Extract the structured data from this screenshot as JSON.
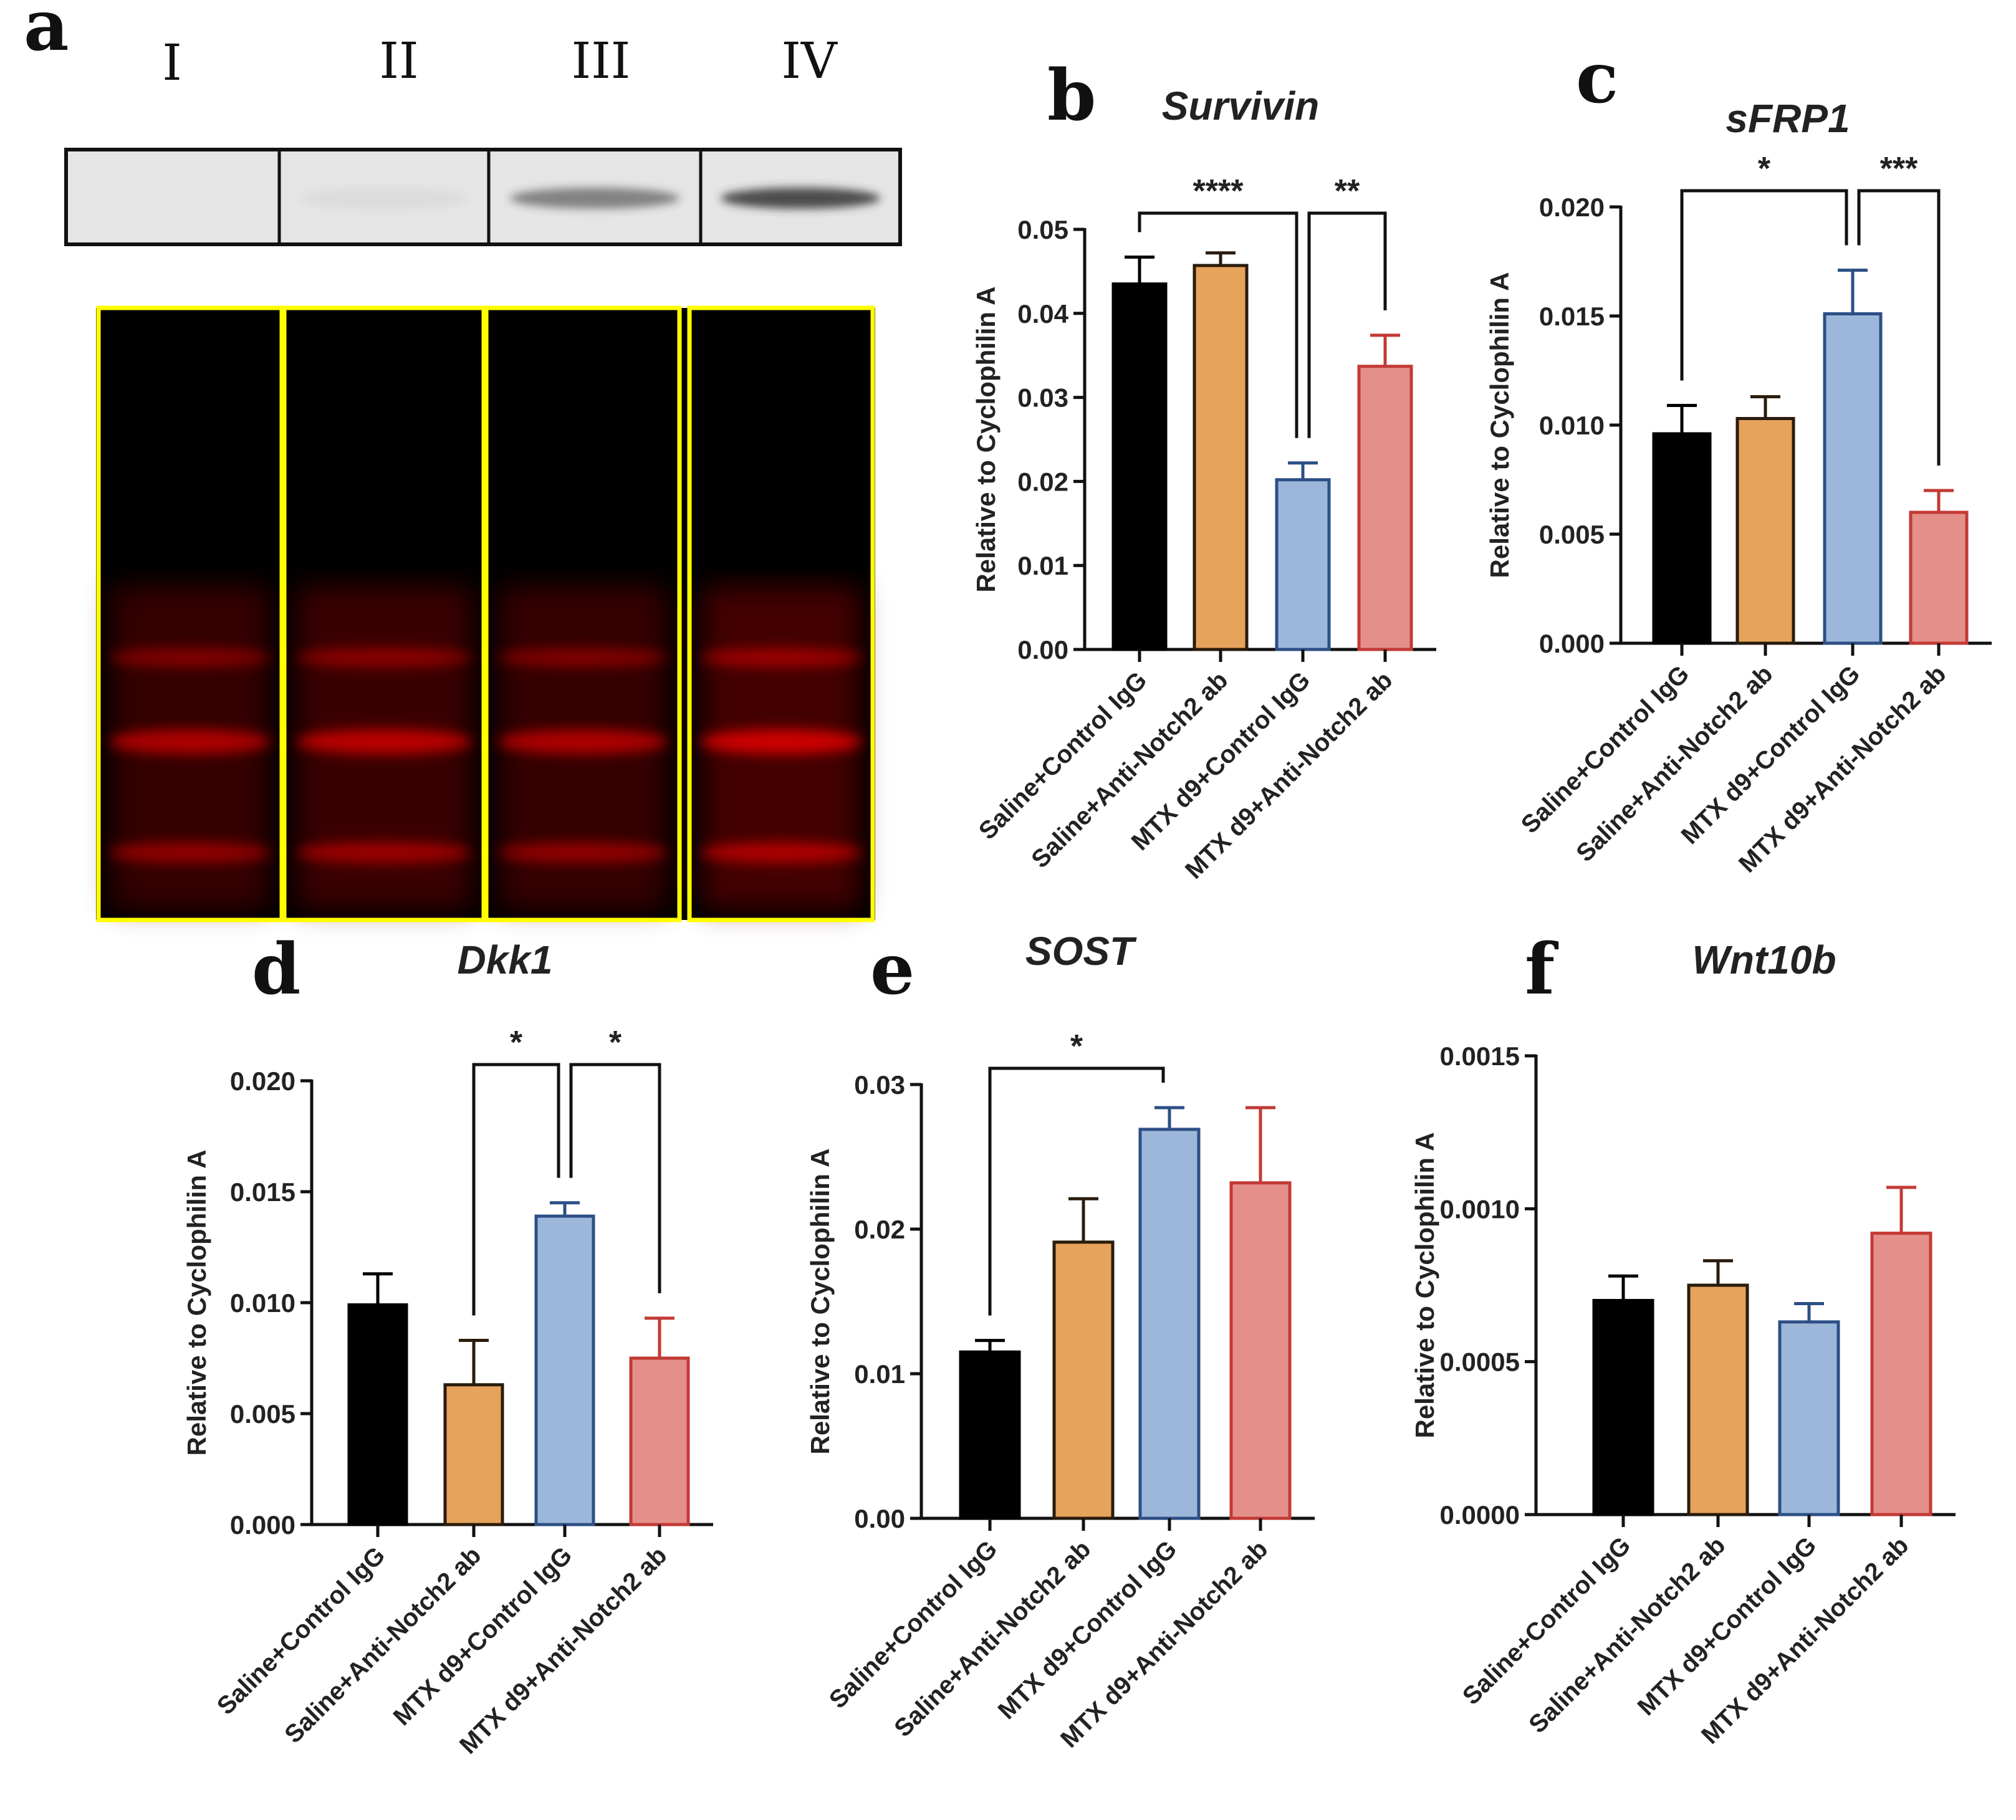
{
  "panel_a": {
    "letter": "a",
    "lanes": [
      "I",
      "II",
      "III",
      "IV"
    ],
    "band_intensity": [
      0.0,
      0.05,
      0.55,
      0.85
    ]
  },
  "bar_colors": [
    {
      "fill": "#000000",
      "edge": "#000000"
    },
    {
      "fill": "#E6A35C",
      "edge": "#2a1c0c"
    },
    {
      "fill": "#9DB7DA",
      "edge": "#2d4f86"
    },
    {
      "fill": "#E48F8A",
      "edge": "#c33a36"
    }
  ],
  "chart_data": [
    {
      "letter": "b",
      "type": "bar",
      "title": "Survivin",
      "ylabel": "Relative to Cyclophilin A",
      "categories": [
        "Saline+Control IgG",
        "Saline+Anti-Notch2 ab",
        "MTX d9+Control IgG",
        "MTX d9+Anti-Notch2 ab"
      ],
      "values": [
        0.0435,
        0.0457,
        0.0202,
        0.0337
      ],
      "errors": [
        0.0032,
        0.0015,
        0.002,
        0.0037
      ],
      "ylim": [
        0,
        0.05
      ],
      "yticks": [
        "0.00",
        "0.01",
        "0.02",
        "0.03",
        "0.04",
        "0.05"
      ],
      "significance": [
        {
          "from": 0,
          "to": 2,
          "label": "****"
        },
        {
          "from": 2,
          "to": 3,
          "label": "**"
        }
      ]
    },
    {
      "letter": "c",
      "type": "bar",
      "title": "sFRP1",
      "ylabel": "Relative to Cyclophilin A",
      "categories": [
        "Saline+Control IgG",
        "Saline+Anti-Notch2 ab",
        "MTX d9+Control IgG",
        "MTX d9+Anti-Notch2 ab"
      ],
      "values": [
        0.0096,
        0.0103,
        0.0151,
        0.006
      ],
      "errors": [
        0.0013,
        0.001,
        0.002,
        0.001
      ],
      "ylim": [
        0,
        0.02
      ],
      "yticks": [
        "0.000",
        "0.005",
        "0.010",
        "0.015",
        "0.020"
      ],
      "significance": [
        {
          "from": 0,
          "to": 2,
          "label": "*"
        },
        {
          "from": 2,
          "to": 3,
          "label": "***"
        }
      ]
    },
    {
      "letter": "d",
      "type": "bar",
      "title": "Dkk1",
      "ylabel": "Relative to Cyclophilin A",
      "categories": [
        "Saline+Control IgG",
        "Saline+Anti-Notch2 ab",
        "MTX d9+Control IgG",
        "MTX d9+Anti-Notch2 ab"
      ],
      "values": [
        0.0099,
        0.0063,
        0.0139,
        0.0075
      ],
      "errors": [
        0.0014,
        0.002,
        0.0006,
        0.0018
      ],
      "ylim": [
        0,
        0.02
      ],
      "yticks": [
        "0.000",
        "0.005",
        "0.010",
        "0.015",
        "0.020"
      ],
      "significance": [
        {
          "from": 1,
          "to": 2,
          "label": "*"
        },
        {
          "from": 2,
          "to": 3,
          "label": "*"
        }
      ]
    },
    {
      "letter": "e",
      "type": "bar",
      "title": "SOST",
      "ylabel": "Relative to Cyclophilin A",
      "categories": [
        "Saline+Control IgG",
        "Saline+Anti-Notch2 ab",
        "MTX d9+Control IgG",
        "MTX d9+Anti-Notch2 ab"
      ],
      "values": [
        0.0115,
        0.0191,
        0.0269,
        0.0232
      ],
      "errors": [
        0.0008,
        0.003,
        0.0015,
        0.0052
      ],
      "ylim": [
        0,
        0.03
      ],
      "yticks": [
        "0.00",
        "0.01",
        "0.02",
        "0.03"
      ],
      "significance": [
        {
          "from": 0,
          "to": 2,
          "label": "*"
        }
      ]
    },
    {
      "letter": "f",
      "type": "bar",
      "title": "Wnt10b",
      "ylabel": "Relative to Cyclophilin A",
      "categories": [
        "Saline+Control IgG",
        "Saline+Anti-Notch2 ab",
        "MTX d9+Control IgG",
        "MTX d9+Anti-Notch2 ab"
      ],
      "values": [
        0.0007,
        0.00075,
        0.00063,
        0.00092
      ],
      "errors": [
        8e-05,
        8e-05,
        6e-05,
        0.00015
      ],
      "ylim": [
        0,
        0.0015
      ],
      "yticks": [
        "0.0000",
        "0.0005",
        "0.0010",
        "0.0015"
      ],
      "significance": []
    }
  ]
}
